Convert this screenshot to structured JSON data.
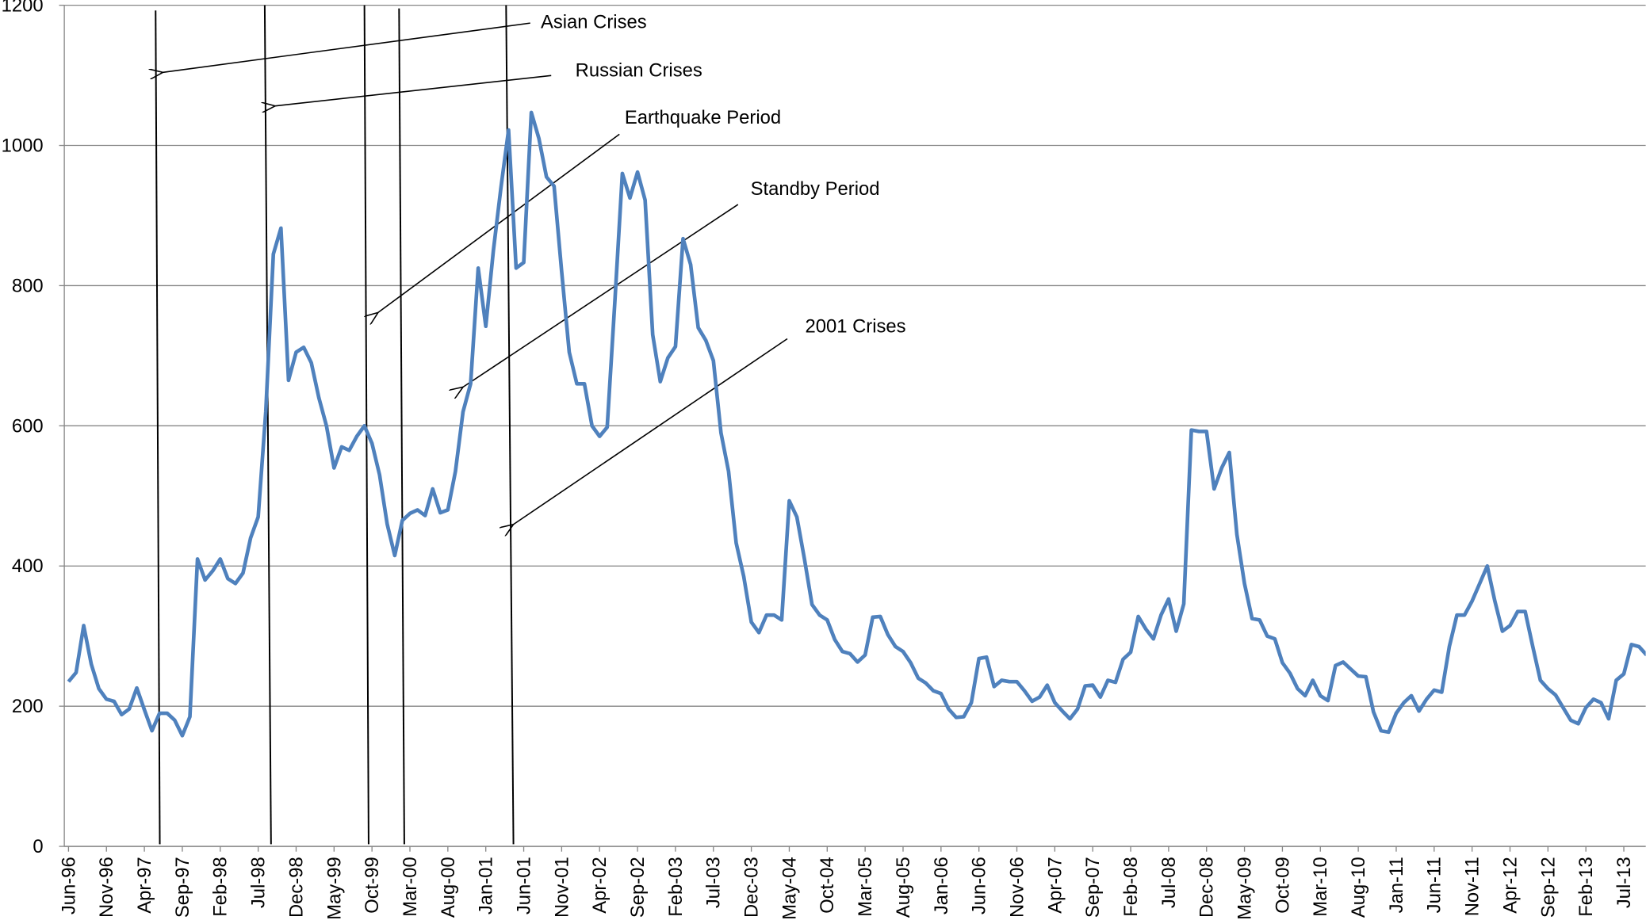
{
  "chart_data": {
    "type": "line",
    "categories": [
      "Jun-96",
      null,
      null,
      null,
      null,
      "Nov-96",
      null,
      null,
      null,
      null,
      "Apr-97",
      null,
      null,
      null,
      null,
      "Sep-97",
      null,
      null,
      null,
      null,
      "Feb-98",
      null,
      null,
      null,
      null,
      "Jul-98",
      null,
      null,
      null,
      null,
      "Dec-98",
      null,
      null,
      null,
      null,
      "May-99",
      null,
      null,
      null,
      null,
      "Oct-99",
      null,
      null,
      null,
      null,
      "Mar-00",
      null,
      null,
      null,
      null,
      "Aug-00",
      null,
      null,
      null,
      null,
      "Jan-01",
      null,
      null,
      null,
      null,
      "Jun-01",
      null,
      null,
      null,
      null,
      "Nov-01",
      null,
      null,
      null,
      null,
      "Apr-02",
      null,
      null,
      null,
      null,
      "Sep-02",
      null,
      null,
      null,
      null,
      "Feb-03",
      null,
      null,
      null,
      null,
      "Jul-03",
      null,
      null,
      null,
      null,
      "Dec-03",
      null,
      null,
      null,
      null,
      "May-04",
      null,
      null,
      null,
      null,
      "Oct-04",
      null,
      null,
      null,
      null,
      "Mar-05",
      null,
      null,
      null,
      null,
      "Aug-05",
      null,
      null,
      null,
      null,
      "Jan-06",
      null,
      null,
      null,
      null,
      "Jun-06",
      null,
      null,
      null,
      null,
      "Nov-06",
      null,
      null,
      null,
      null,
      "Apr-07",
      null,
      null,
      null,
      null,
      "Sep-07",
      null,
      null,
      null,
      null,
      "Feb-08",
      null,
      null,
      null,
      null,
      "Jul-08",
      null,
      null,
      null,
      null,
      "Dec-08",
      null,
      null,
      null,
      null,
      "May-09",
      null,
      null,
      null,
      null,
      "Oct-09",
      null,
      null,
      null,
      null,
      "Mar-10",
      null,
      null,
      null,
      null,
      "Aug-10",
      null,
      null,
      null,
      null,
      "Jan-11",
      null,
      null,
      null,
      null,
      "Jun-11",
      null,
      null,
      null,
      null,
      "Nov-11",
      null,
      null,
      null,
      null,
      "Apr-12",
      null,
      null,
      null,
      null,
      "Sep-12",
      null,
      null,
      null,
      null,
      "Feb-13",
      null,
      null,
      null,
      null,
      "Jul-13",
      null,
      null,
      null
    ],
    "series": [
      {
        "color": "#4f81bd",
        "values": [
          235,
          248,
          315,
          260,
          225,
          210,
          207,
          188,
          196,
          226,
          195,
          165,
          190,
          190,
          180,
          158,
          185,
          410,
          380,
          393,
          410,
          382,
          375,
          390,
          440,
          470,
          620,
          845,
          882,
          665,
          705,
          712,
          690,
          640,
          600,
          540,
          570,
          565,
          585,
          600,
          575,
          530,
          460,
          415,
          465,
          475,
          480,
          472,
          510,
          476,
          480,
          535,
          620,
          660,
          825,
          742,
          850,
          940,
          1022,
          825,
          833,
          1047,
          1010,
          955,
          942,
          820,
          705,
          660,
          660,
          600,
          585,
          598,
          775,
          960,
          925,
          962,
          922,
          730,
          663,
          697,
          713,
          867,
          830,
          740,
          722,
          693,
          590,
          535,
          433,
          385,
          320,
          305,
          330,
          330,
          323,
          493,
          470,
          410,
          345,
          330,
          323,
          295,
          278,
          275,
          263,
          273,
          327,
          328,
          302,
          285,
          278,
          262,
          240,
          233,
          222,
          218,
          196,
          184,
          185,
          205,
          268,
          270,
          228,
          237,
          235,
          235,
          222,
          207,
          213,
          230,
          205,
          193,
          182,
          196,
          229,
          230,
          213,
          237,
          234,
          267,
          277,
          328,
          310,
          296,
          330,
          353,
          307,
          346,
          594,
          592,
          592,
          510,
          540,
          562,
          445,
          375,
          325,
          323,
          300,
          296,
          262,
          247,
          225,
          215,
          237,
          215,
          208,
          258,
          263,
          253,
          243,
          242,
          192,
          165,
          163,
          190,
          205,
          215,
          193,
          210,
          223,
          220,
          285,
          330,
          330,
          350,
          375,
          400,
          350,
          307,
          315,
          335,
          335,
          285,
          237,
          225,
          216,
          198,
          180,
          175,
          198,
          210,
          205,
          182,
          237,
          246,
          288,
          285,
          273
        ]
      }
    ],
    "ylim": [
      0,
      1200
    ],
    "yticks": [
      0,
      200,
      400,
      600,
      800,
      1000,
      1200
    ],
    "grid": true,
    "annotations": [
      "Asian Crises",
      "Russian Crises",
      "Earthquake Period",
      "Standby Period",
      "2001 Crises"
    ]
  }
}
